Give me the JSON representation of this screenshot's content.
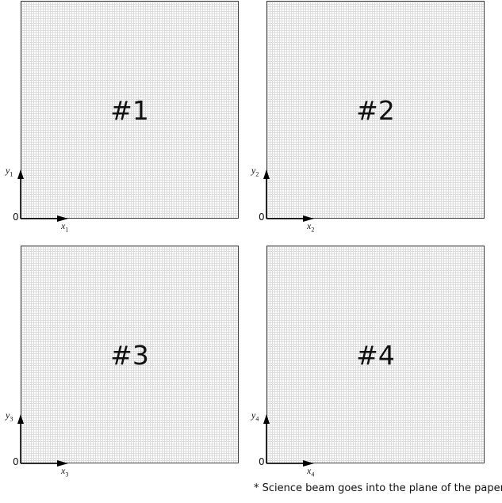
{
  "panels": [
    {
      "label": "#1",
      "y_label": "y",
      "y_sub": "1",
      "x_label": "x",
      "x_sub": "1",
      "origin": "0"
    },
    {
      "label": "#2",
      "y_label": "y",
      "y_sub": "2",
      "x_label": "x",
      "x_sub": "2",
      "origin": "0"
    },
    {
      "label": "#3",
      "y_label": "y",
      "y_sub": "3",
      "x_label": "x",
      "x_sub": "3",
      "origin": "0"
    },
    {
      "label": "#4",
      "y_label": "y",
      "y_sub": "4",
      "x_label": "x",
      "x_sub": "4",
      "origin": "0"
    }
  ],
  "footnote": "*  Science beam goes into the plane of the paper.",
  "colors": {
    "grid": "#dcdcdc",
    "border": "#3a3a3a",
    "axis": "#000000"
  }
}
